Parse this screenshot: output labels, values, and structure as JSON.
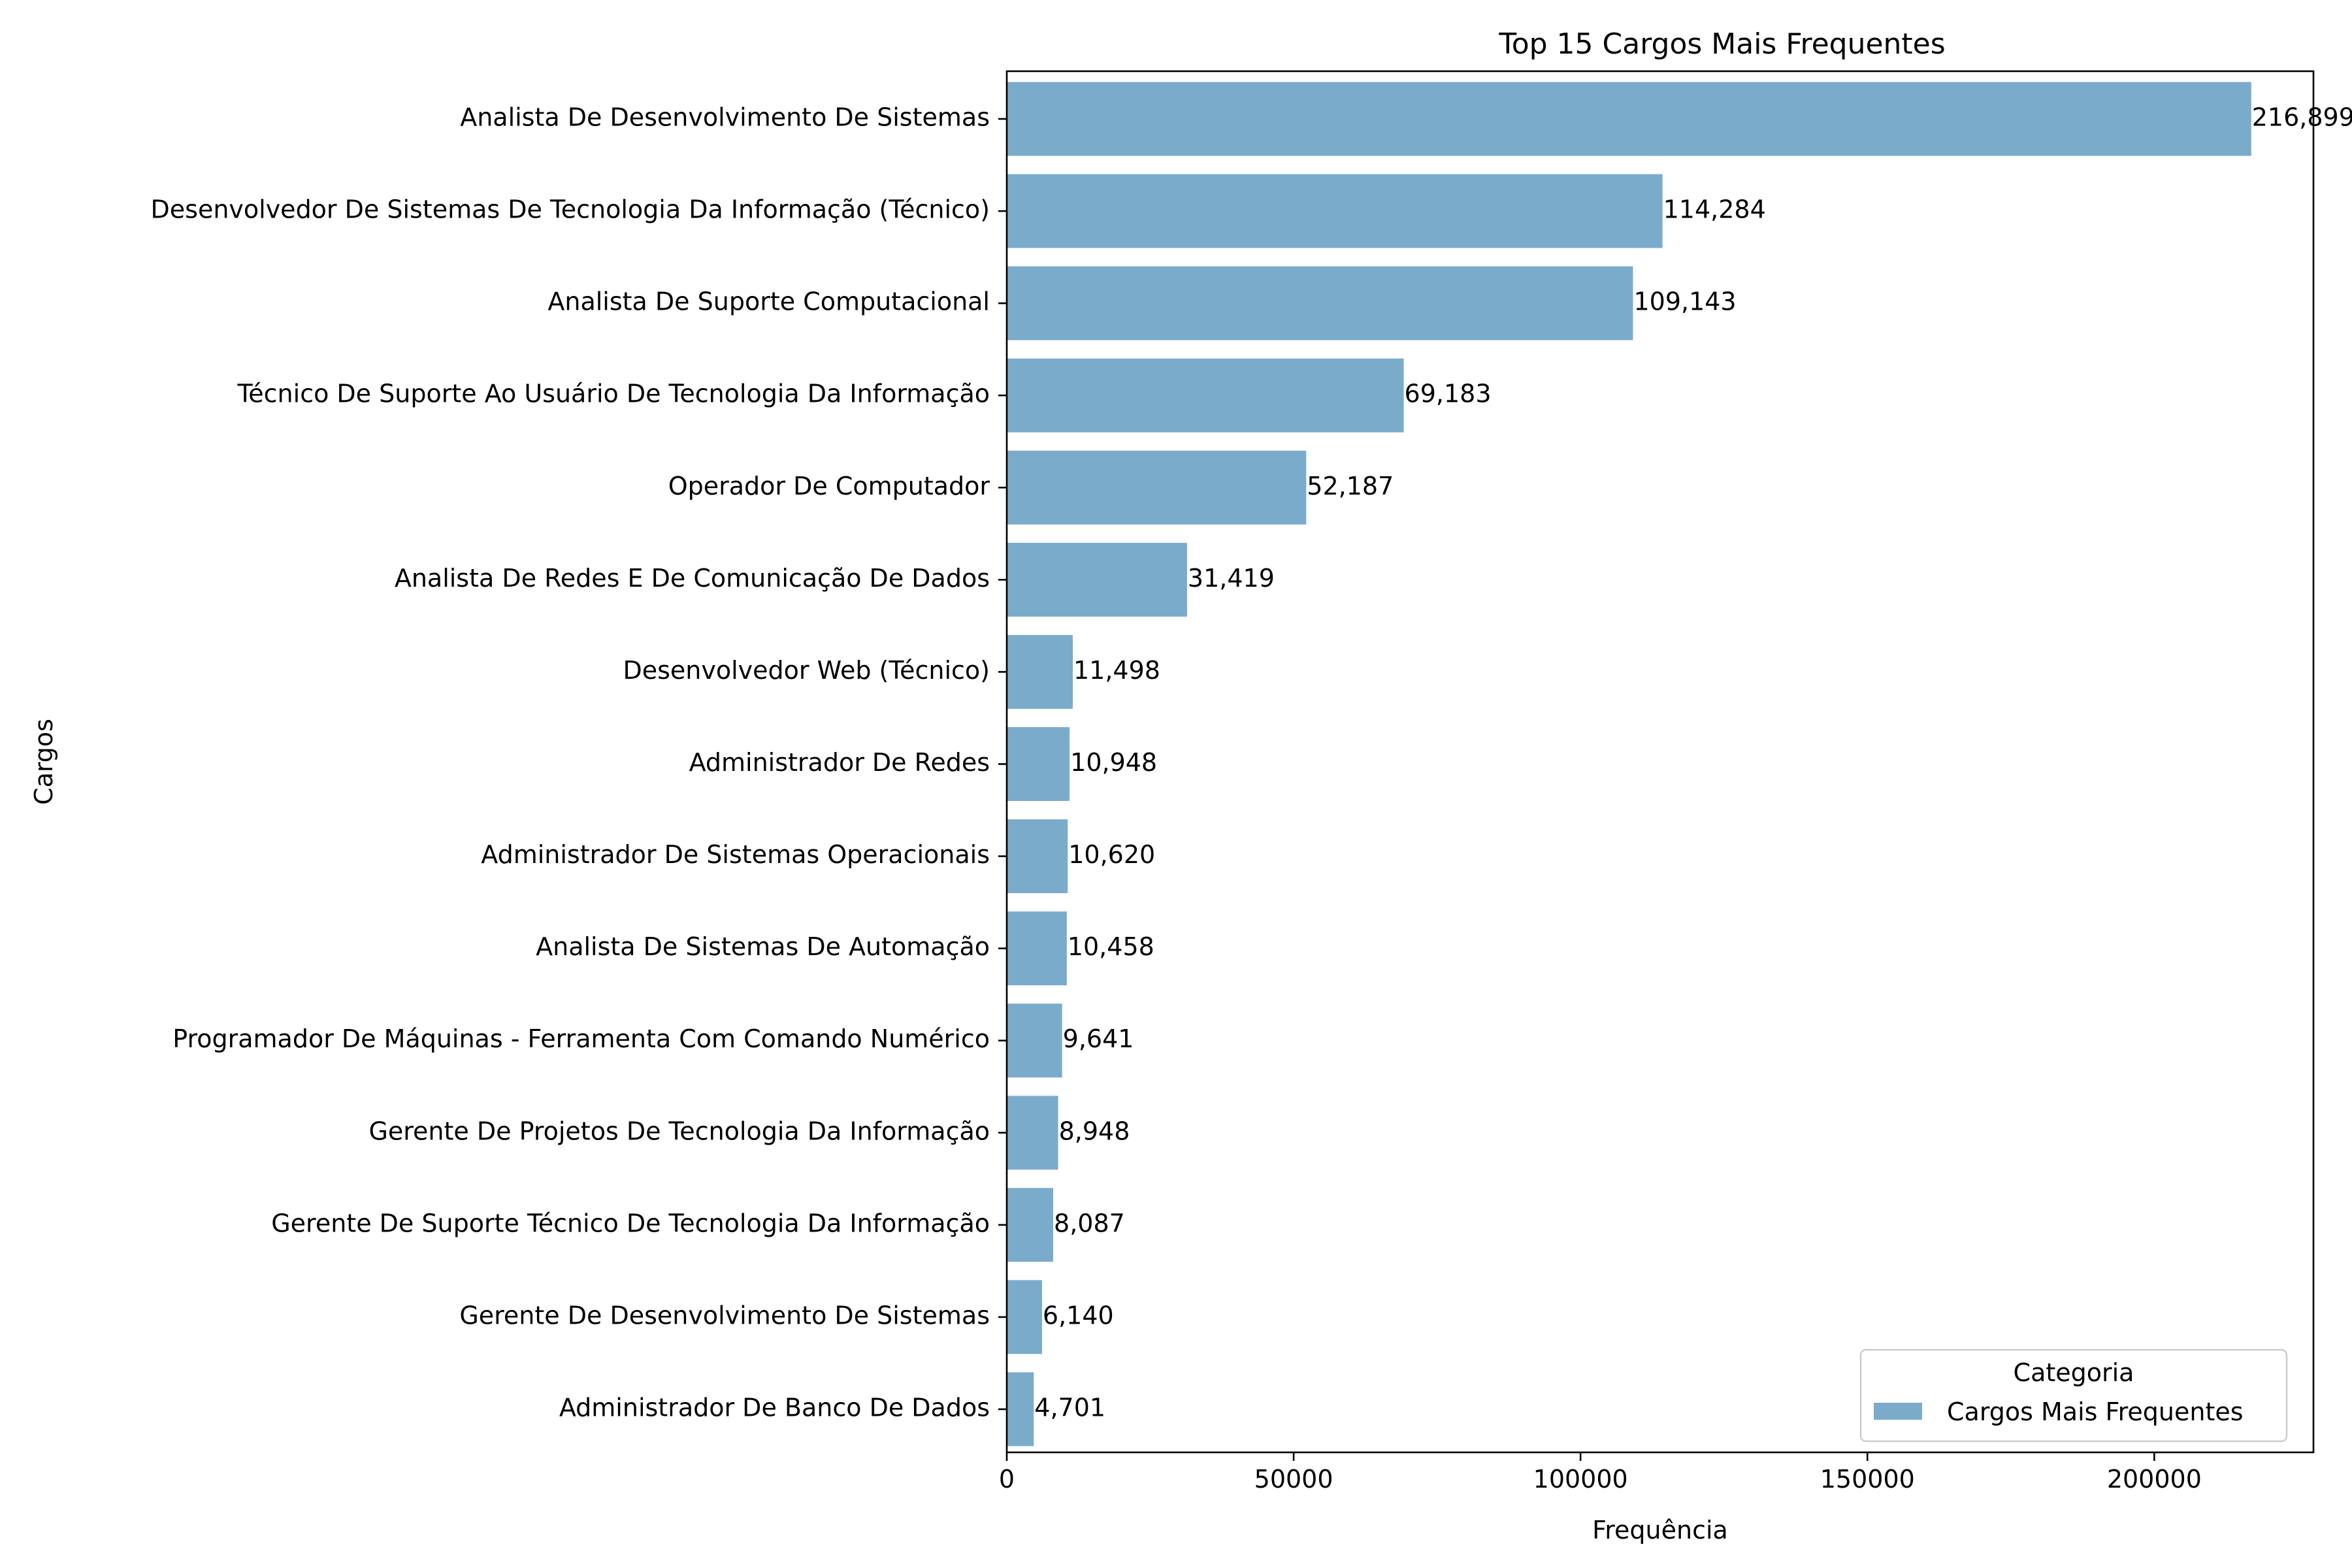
{
  "chart_data": {
    "type": "bar",
    "orientation": "horizontal",
    "title": "Top 15 Cargos Mais Frequentes",
    "xlabel": "Frequência",
    "ylabel": "Cargos",
    "xlim": [
      0,
      227744
    ],
    "xticks": [
      0,
      50000,
      100000,
      150000,
      200000
    ],
    "xtick_labels": [
      "0",
      "50000",
      "100000",
      "150000",
      "200000"
    ],
    "grid": false,
    "categories": [
      "Analista De Desenvolvimento De Sistemas",
      "Desenvolvedor De Sistemas De Tecnologia Da Informação (Técnico)",
      "Analista De Suporte Computacional",
      "Técnico De Suporte Ao Usuário De Tecnologia Da Informação",
      "Operador De Computador",
      "Analista De Redes E De Comunicação De Dados",
      "Desenvolvedor Web (Técnico)",
      "Administrador De Redes",
      "Administrador De Sistemas Operacionais",
      "Analista De Sistemas De Automação",
      "Programador De Máquinas - Ferramenta Com Comando Numérico",
      "Gerente De Projetos De Tecnologia Da Informação",
      "Gerente De Suporte Técnico De Tecnologia Da Informação",
      "Gerente De Desenvolvimento De Sistemas",
      "Administrador De Banco De Dados"
    ],
    "values": [
      216899,
      114284,
      109143,
      69183,
      52187,
      31419,
      11498,
      10948,
      10620,
      10458,
      9641,
      8948,
      8087,
      6140,
      4701
    ],
    "value_labels": [
      "216,899",
      "114,284",
      "109,143",
      "69,183",
      "52,187",
      "31,419",
      "11,498",
      "10,948",
      "10,620",
      "10,458",
      "9,641",
      "8,948",
      "8,087",
      "6,140",
      "4,701"
    ],
    "series": [
      {
        "name": "Cargos Mais Frequentes",
        "color": "#7aabcb"
      }
    ],
    "legend": {
      "title": "Categoria",
      "placement": "lower-right"
    }
  }
}
